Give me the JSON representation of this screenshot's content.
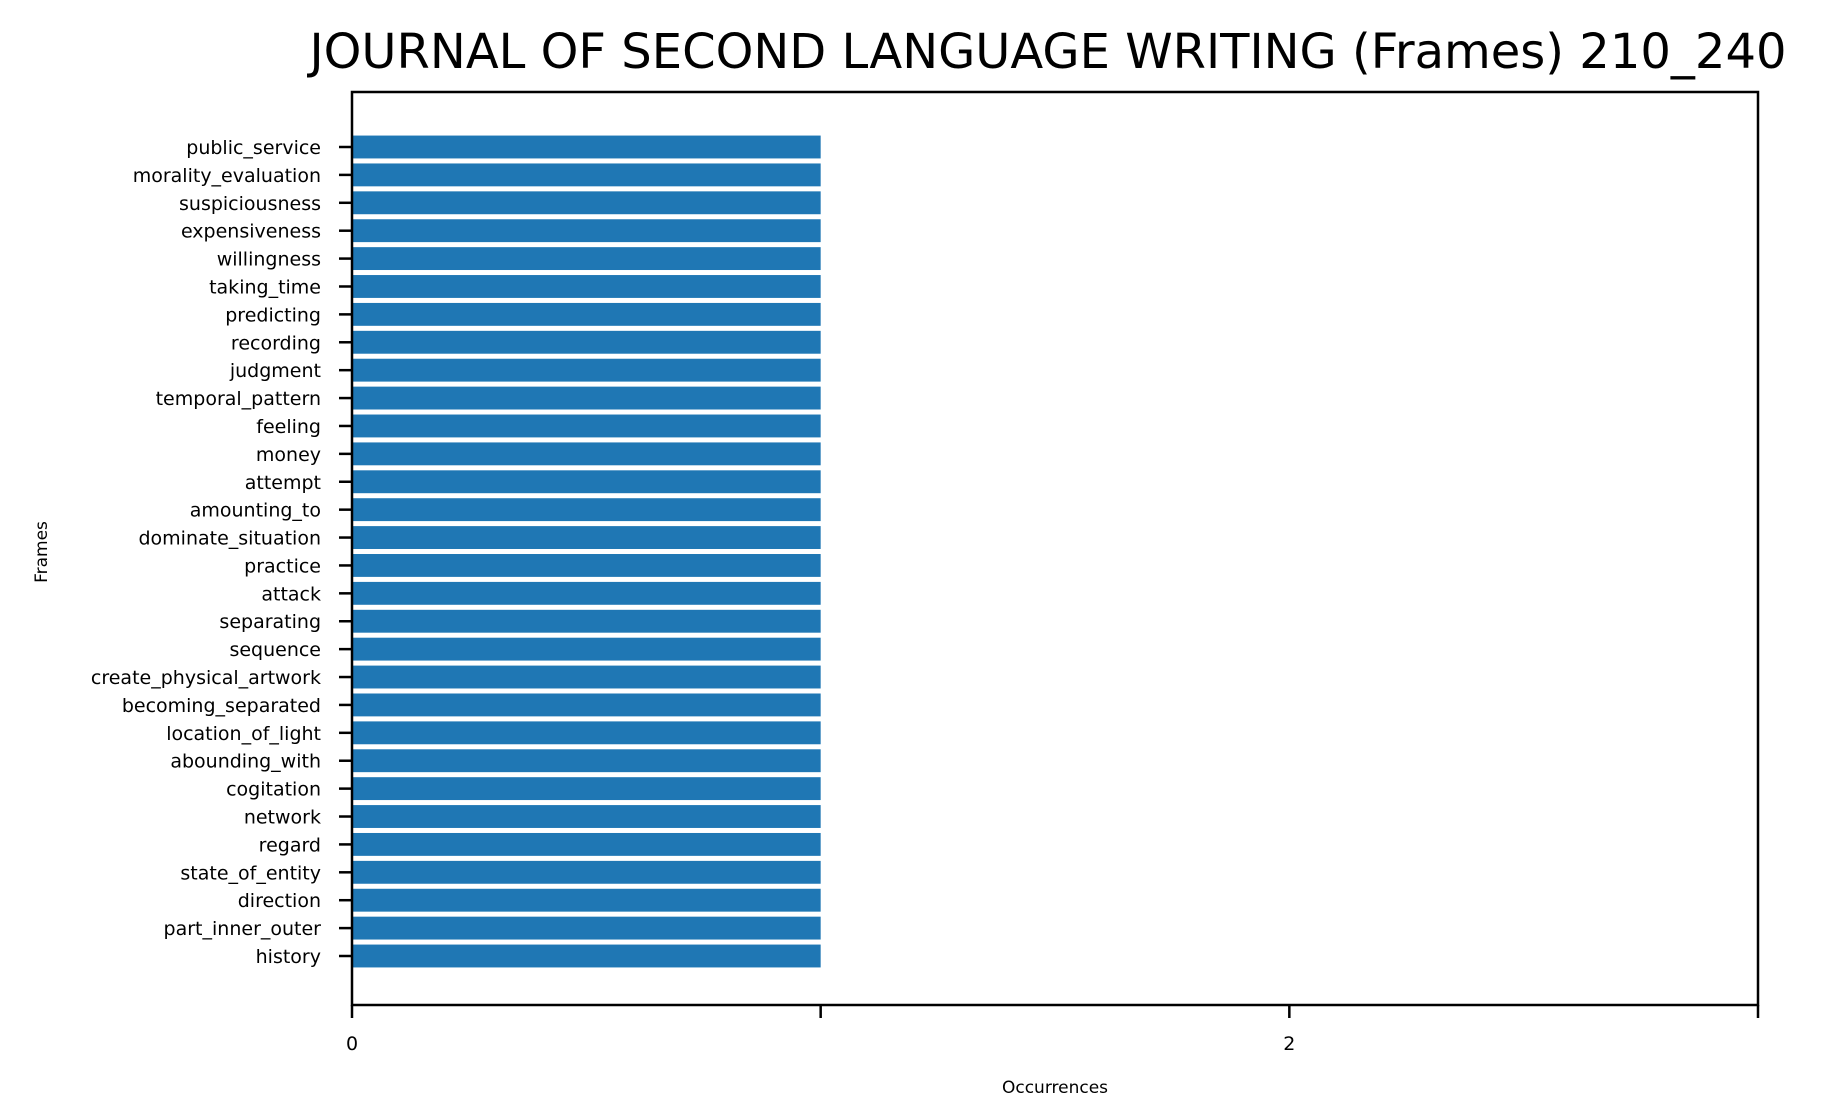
{
  "chart_data": {
    "type": "bar",
    "orientation": "horizontal",
    "title": "JOURNAL OF SECOND LANGUAGE WRITING (Frames) 210_240",
    "xlabel": "Occurrences",
    "ylabel": "Frames",
    "xlim": [
      0,
      3
    ],
    "x_ticks": [
      0,
      1,
      2,
      3
    ],
    "x_tick_labels": [
      "0",
      "",
      "2",
      ""
    ],
    "grid": false,
    "bar_color": "#1f77b4",
    "categories": [
      "public_service",
      "morality_evaluation",
      "suspiciousness",
      "expensiveness",
      "willingness",
      "taking_time",
      "predicting",
      "recording",
      "judgment",
      "temporal_pattern",
      "feeling",
      "money",
      "attempt",
      "amounting_to",
      "dominate_situation",
      "practice",
      "attack",
      "separating",
      "sequence",
      "create_physical_artwork",
      "becoming_separated",
      "location_of_light",
      "abounding_with",
      "cogitation",
      "network",
      "regard",
      "state_of_entity",
      "direction",
      "part_inner_outer",
      "history"
    ],
    "values": [
      1,
      1,
      1,
      1,
      1,
      1,
      1,
      1,
      1,
      1,
      1,
      1,
      1,
      1,
      1,
      1,
      1,
      1,
      1,
      1,
      1,
      1,
      1,
      1,
      1,
      1,
      1,
      1,
      1,
      1
    ]
  }
}
